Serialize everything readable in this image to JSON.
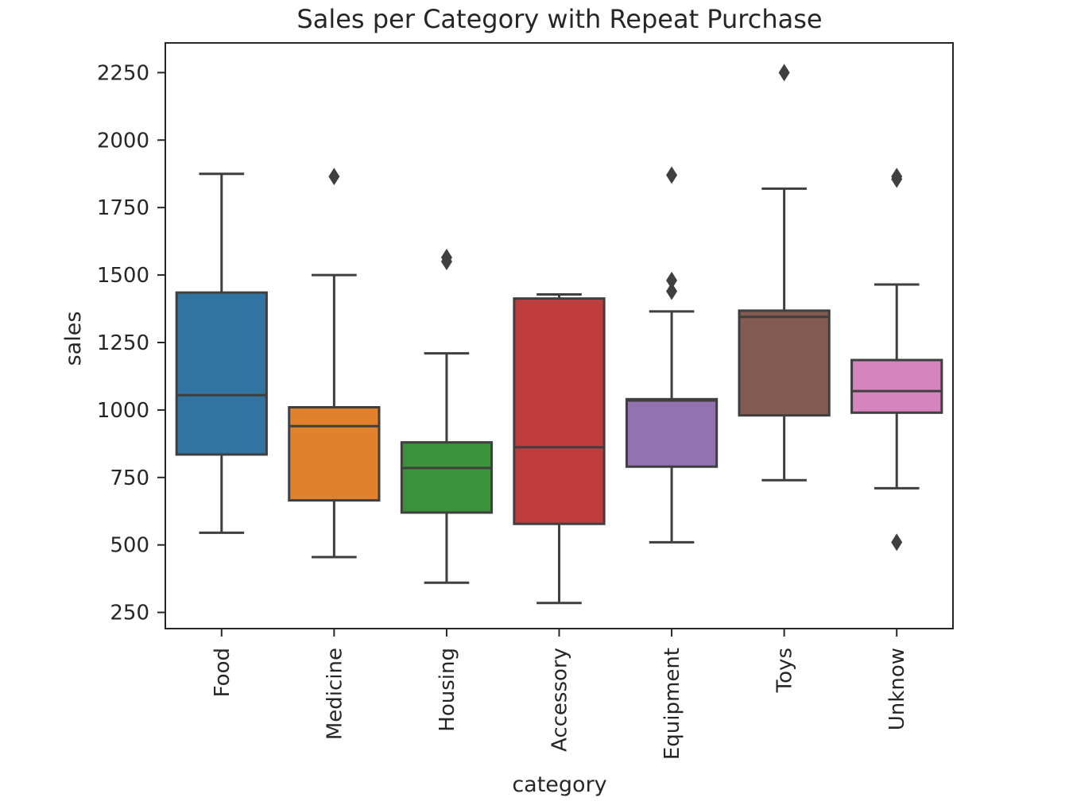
{
  "chart_data": {
    "type": "box",
    "title": "Sales per Category with Repeat Purchase",
    "xlabel": "category",
    "ylabel": "sales",
    "ylim": [
      190,
      2360
    ],
    "yticks": [
      250,
      500,
      750,
      1000,
      1250,
      1500,
      1750,
      2000,
      2250
    ],
    "ytick_labels": [
      "250",
      "500",
      "750",
      "1000",
      "1250",
      "1500",
      "1750",
      "2000",
      "2250"
    ],
    "grid": false,
    "categories": [
      "Food",
      "Medicine",
      "Housing",
      "Accessory",
      "Equipment",
      "Toys",
      "Unknow"
    ],
    "colors": [
      "#3274a1",
      "#e1812c",
      "#3a923a",
      "#c03d3e",
      "#9372b2",
      "#845b53",
      "#d684bd"
    ],
    "boxes": [
      {
        "category": "Food",
        "whisker_low": 545,
        "q1": 835,
        "median": 1055,
        "q3": 1435,
        "whisker_high": 1875,
        "outliers": []
      },
      {
        "category": "Medicine",
        "whisker_low": 455,
        "q1": 665,
        "median": 940,
        "q3": 1010,
        "whisker_high": 1500,
        "outliers": [
          1865
        ]
      },
      {
        "category": "Housing",
        "whisker_low": 360,
        "q1": 620,
        "median": 785,
        "q3": 880,
        "whisker_high": 1210,
        "outliers": [
          1550,
          1565
        ]
      },
      {
        "category": "Accessory",
        "whisker_low": 285,
        "q1": 578,
        "median": 862,
        "q3": 1413,
        "whisker_high": 1428,
        "outliers": []
      },
      {
        "category": "Equipment",
        "whisker_low": 510,
        "q1": 790,
        "median": 1035,
        "q3": 1040,
        "whisker_high": 1365,
        "outliers": [
          1440,
          1480,
          1870
        ]
      },
      {
        "category": "Toys",
        "whisker_low": 740,
        "q1": 980,
        "median": 1345,
        "q3": 1368,
        "whisker_high": 1820,
        "outliers": [
          2250
        ]
      },
      {
        "category": "Unknow",
        "whisker_low": 710,
        "q1": 990,
        "median": 1070,
        "q3": 1185,
        "whisker_high": 1465,
        "outliers": [
          510,
          1855,
          1865
        ]
      }
    ]
  }
}
